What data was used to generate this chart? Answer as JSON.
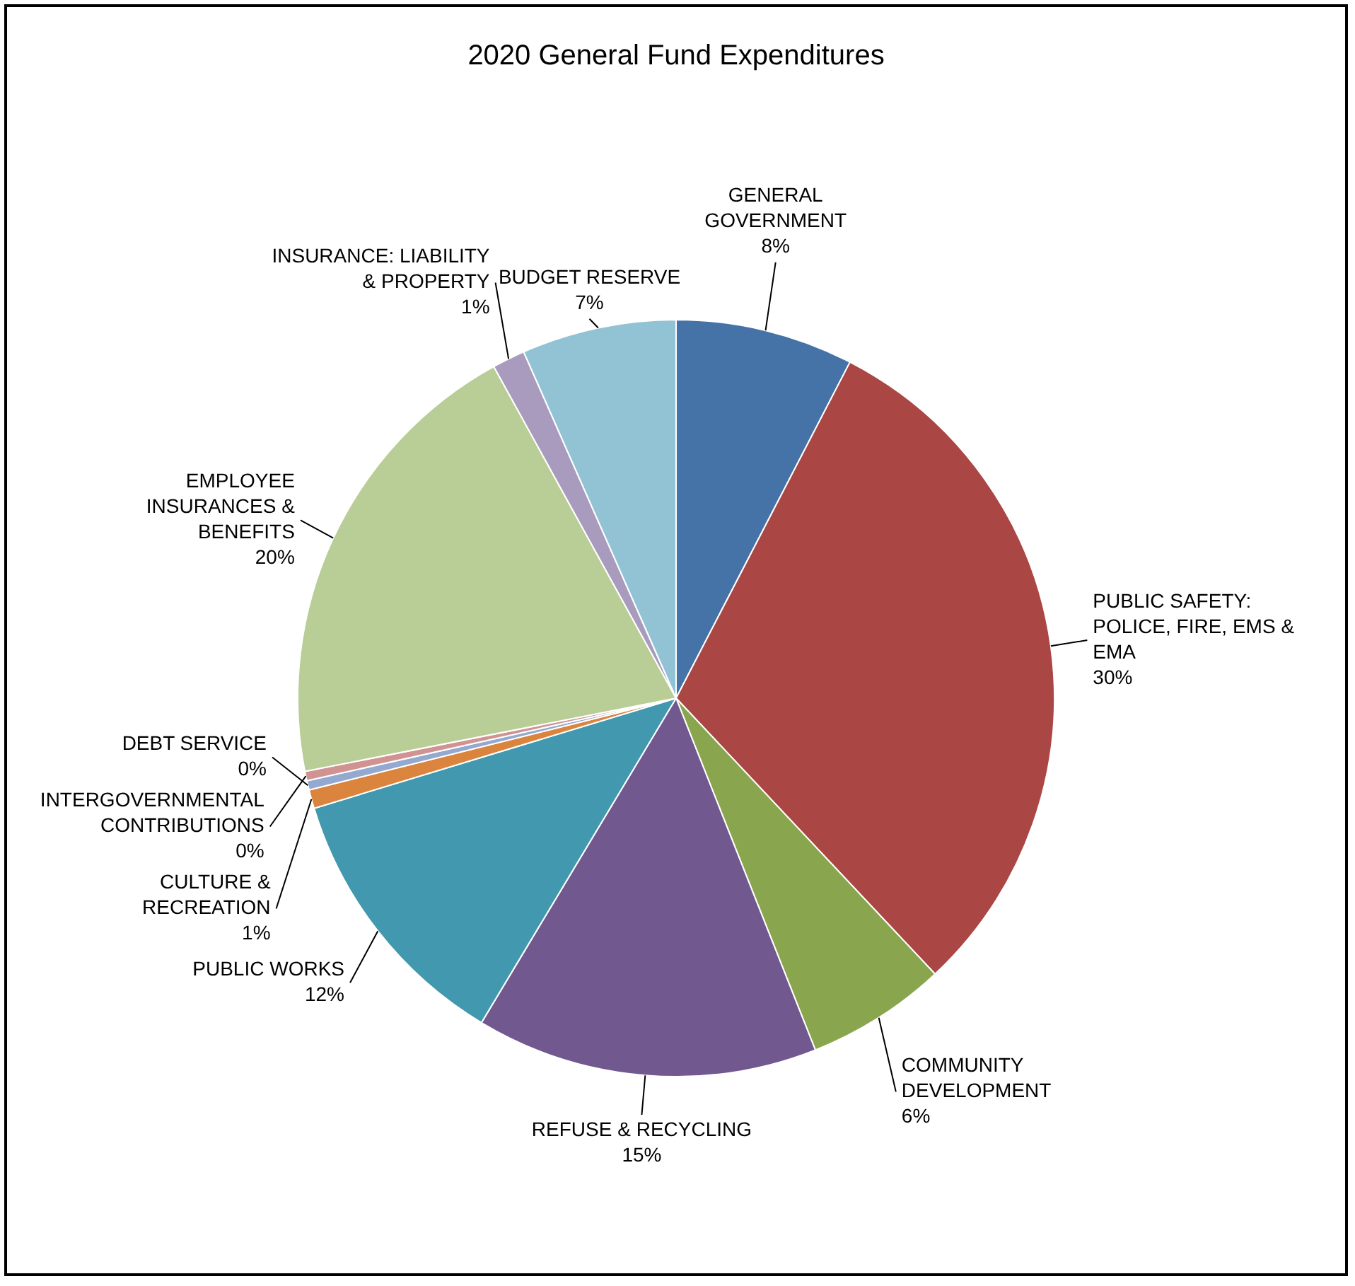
{
  "chart_data": {
    "type": "pie",
    "title": "2020 General Fund Expenditures",
    "categories": [
      "GENERAL GOVERNMENT",
      "PUBLIC SAFETY: POLICE, FIRE, EMS & EMA",
      "COMMUNITY DEVELOPMENT",
      "REFUSE & RECYCLING",
      "PUBLIC WORKS",
      "CULTURE & RECREATION",
      "DEBT SERVICE",
      "INTERGOVERNMENTAL CONTRIBUTIONS",
      "EMPLOYEE INSURANCES & BENEFITS",
      "INSURANCE: LIABILITY & PROPERTY",
      "BUDGET RESERVE"
    ],
    "values": [
      7.6,
      30.4,
      6.0,
      14.6,
      11.7,
      0.8,
      0.4,
      0.4,
      20.1,
      1.4,
      6.6
    ],
    "value_labels": [
      "8%",
      "30%",
      "6%",
      "15%",
      "12%",
      "1%",
      "0%",
      "0%",
      "20%",
      "1%",
      "7%"
    ],
    "colors": [
      "#4572a7",
      "#aa4643",
      "#89a54e",
      "#71588f",
      "#4198af",
      "#db843d",
      "#93a9cf",
      "#d19392",
      "#b9cd96",
      "#a99bbd",
      "#92c3d4"
    ]
  }
}
